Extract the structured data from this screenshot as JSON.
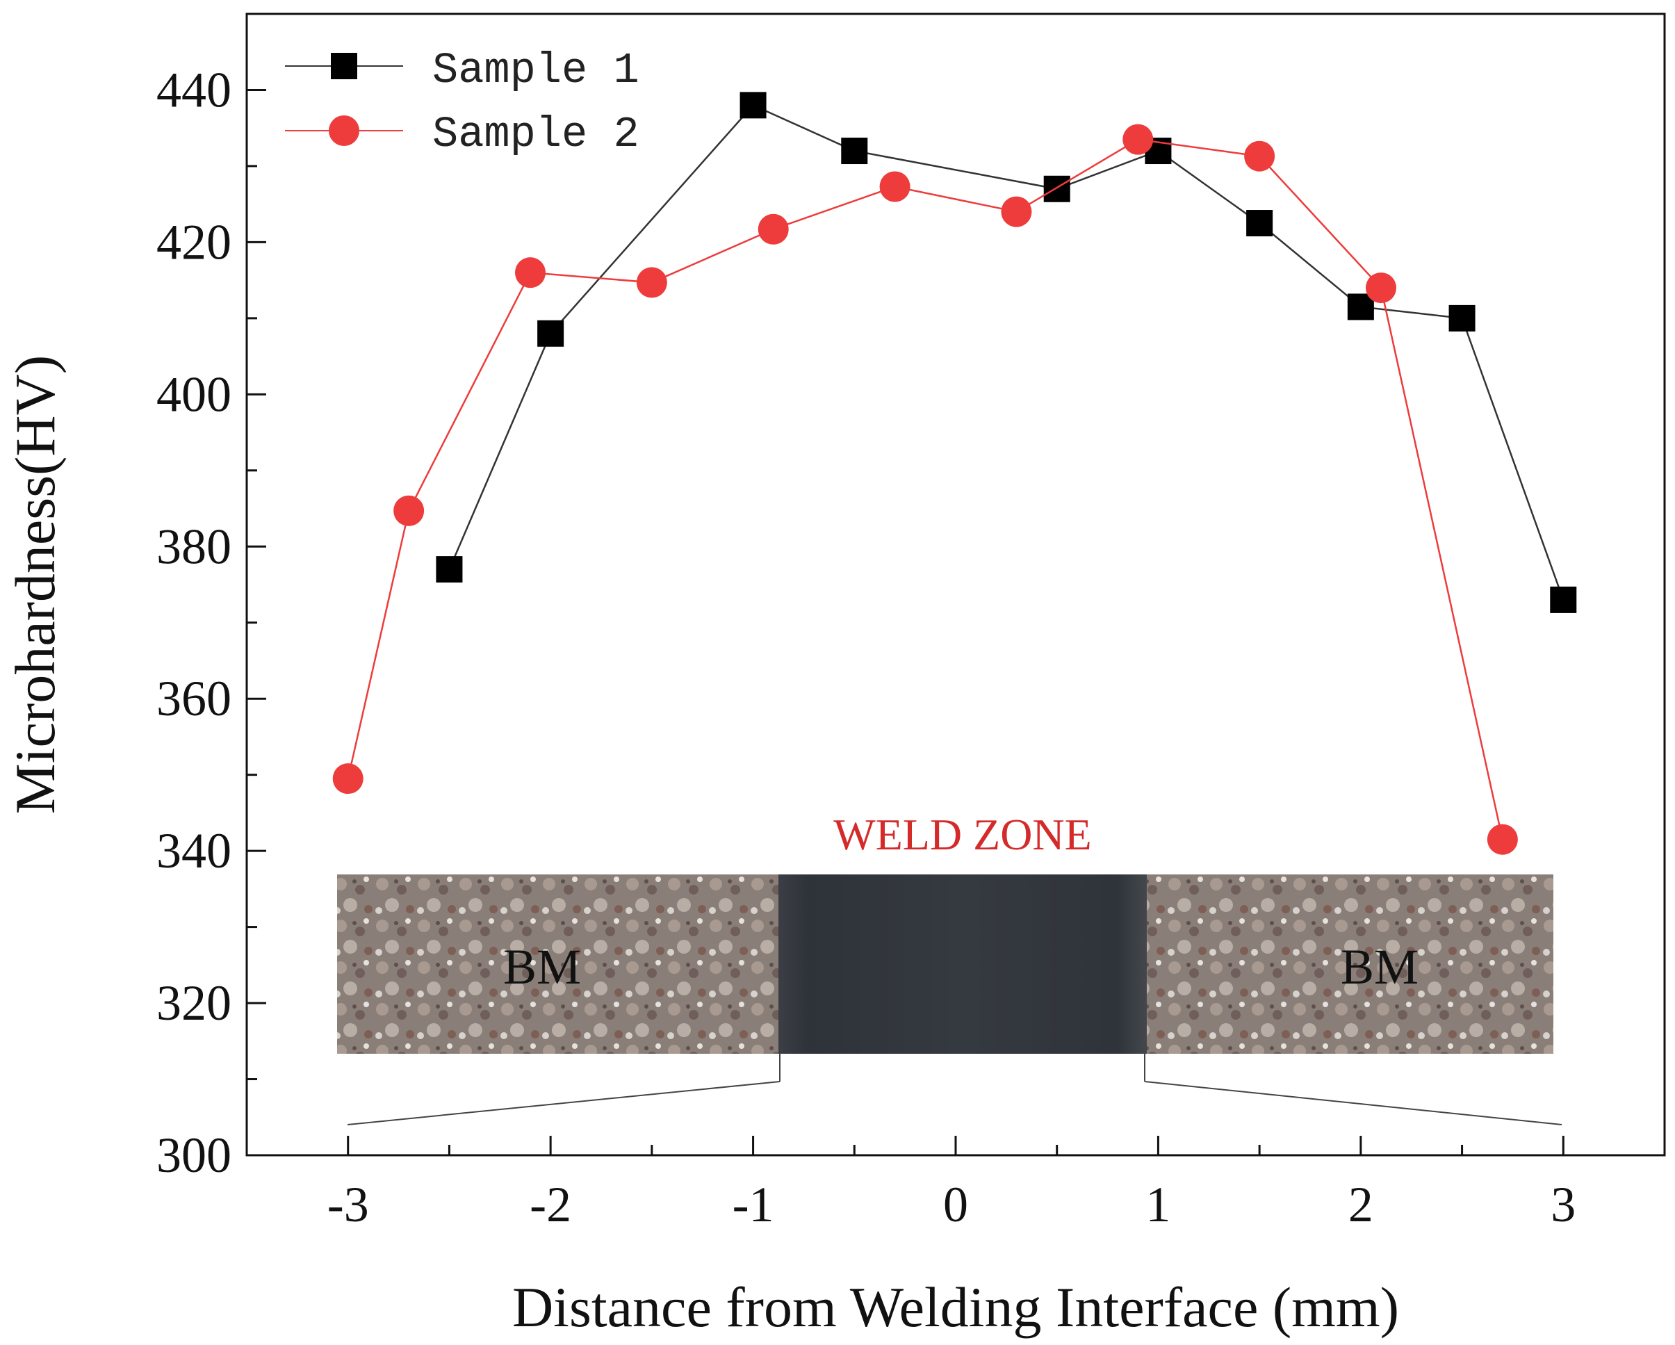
{
  "chart_data": {
    "type": "line",
    "title": "",
    "xlabel": "Distance from Welding Interface (mm)",
    "ylabel": "Microhardness(HV)",
    "xlim": [
      -3.5,
      3.5
    ],
    "ylim": [
      300,
      450
    ],
    "xticks": [
      -3,
      -2,
      -1,
      0,
      1,
      2,
      3
    ],
    "xtick_labels": [
      "-3",
      "-2",
      "-1",
      "0",
      "1",
      "2",
      "3"
    ],
    "yticks": [
      300,
      320,
      340,
      360,
      380,
      400,
      420,
      440
    ],
    "ytick_labels": [
      "300",
      "320",
      "340",
      "360",
      "380",
      "400",
      "420",
      "440"
    ],
    "legend_position": "top-left",
    "series": [
      {
        "name": "Sample 1",
        "marker": "square",
        "color": "#000000",
        "line_color": "#333333",
        "x": [
          -2.5,
          -2.0,
          -1.0,
          -0.5,
          0.5,
          1.0,
          1.5,
          2.0,
          2.5,
          3.0
        ],
        "values": [
          377,
          408,
          438,
          432,
          427,
          432,
          422.5,
          411.5,
          410,
          373
        ]
      },
      {
        "name": "Sample 2",
        "marker": "circle",
        "color": "#ee3b3b",
        "line_color": "#ee3b3b",
        "x": [
          -3.0,
          -2.7,
          -2.1,
          -1.5,
          -0.9,
          -0.3,
          0.3,
          0.9,
          1.5,
          2.1,
          2.7
        ],
        "values": [
          349.5,
          384.7,
          416,
          414.7,
          421.7,
          427.3,
          424,
          433.5,
          431.3,
          414,
          341.5
        ]
      }
    ],
    "inset": {
      "weld_zone_label": "WELD ZONE",
      "weld_zone_color": "#d42a2a",
      "left_region_label": "BM",
      "right_region_label": "BM",
      "weld_zone_x_range": [
        -0.9,
        0.9
      ],
      "zoom_line_x_ends": [
        -3.0,
        3.0
      ]
    }
  }
}
